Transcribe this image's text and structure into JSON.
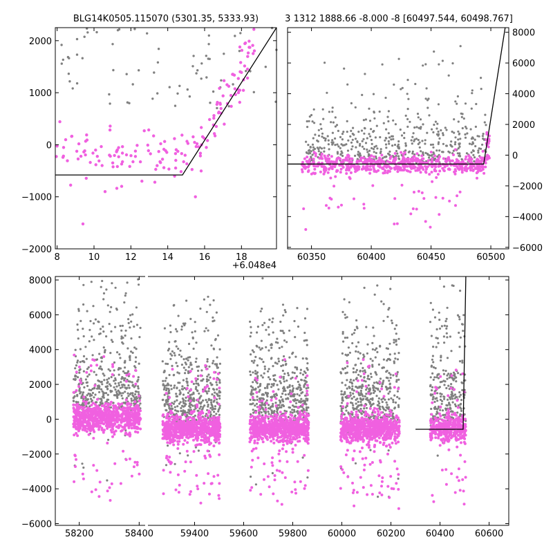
{
  "titles": {
    "left": "BLG14K0505.115070 (5301.35, 5333.93)",
    "right": "3 1312 1888.66 -8.000 -8 [60497.544, 60498.767]"
  },
  "colors": {
    "points_a": "#808080",
    "points_b": "#f060e0",
    "model": "#000000"
  },
  "chart_data": [
    {
      "id": "top-left",
      "type": "scatter",
      "title": "BLG14K0505.115070 (5301.35, 5333.93)",
      "xlim": [
        7.9,
        19.9
      ],
      "ylim": [
        -2000,
        2250
      ],
      "xticks": [
        8,
        10,
        12,
        14,
        16,
        18
      ],
      "yticks": [
        -2000,
        -1000,
        0,
        1000,
        2000
      ],
      "x_offset_label": "+6.048e4",
      "model": {
        "x": [
          7.9,
          14.8,
          19.9
        ],
        "y": [
          -580,
          -580,
          2250
        ]
      }
    },
    {
      "id": "top-right",
      "type": "scatter",
      "title": "3 1312 1888.66 -8.000 -8 [60497.544, 60498.767]",
      "xlim": [
        60330,
        60515
      ],
      "ylim": [
        -6100,
        8300
      ],
      "xticks": [
        60350,
        60400,
        60450,
        60500
      ],
      "yticks": [
        -6000,
        -4000,
        -2000,
        0,
        2000,
        4000,
        6000,
        8000
      ],
      "yaxis_side": "right",
      "model": {
        "x": [
          60330,
          60494,
          60512
        ],
        "y": [
          -580,
          -580,
          8300
        ]
      }
    },
    {
      "id": "bottom",
      "type": "scatter",
      "broken_x_axis": true,
      "segments": [
        {
          "xlim": [
            58120,
            58420
          ],
          "xticks": [
            58200,
            58400
          ]
        },
        {
          "xlim": [
            59210,
            60680
          ],
          "xticks": [
            59400,
            59600,
            59800,
            60000,
            60200,
            60400,
            60600
          ]
        }
      ],
      "ylim": [
        -6100,
        8200
      ],
      "yticks": [
        -6000,
        -4000,
        -2000,
        0,
        2000,
        4000,
        6000,
        8000
      ],
      "seasons": [
        {
          "x0": 58180,
          "x1": 58405
        },
        {
          "x0": 59270,
          "x1": 59505
        },
        {
          "x0": 59625,
          "x1": 59865
        },
        {
          "x0": 59995,
          "x1": 60235
        },
        {
          "x0": 60360,
          "x1": 60505
        }
      ],
      "model": {
        "x": [
          60300,
          60494,
          60505
        ],
        "y": [
          -580,
          -580,
          8200
        ]
      }
    }
  ]
}
